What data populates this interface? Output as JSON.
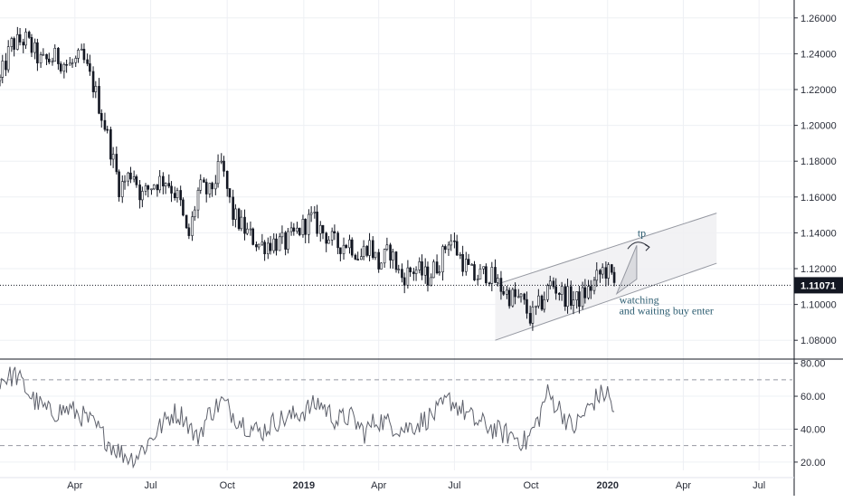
{
  "chart_data": [
    {
      "type": "candlestick",
      "x_range": [
        "2018-01-01",
        "2020-08-10"
      ],
      "ylim": [
        1.07,
        1.27
      ],
      "yticks": [
        "1.26000",
        "1.24000",
        "1.22000",
        "1.20000",
        "1.18000",
        "1.16000",
        "1.14000",
        "1.12000",
        "1.10000",
        "1.08000"
      ],
      "ytick_values": [
        1.26,
        1.24,
        1.22,
        1.2,
        1.18,
        1.16,
        1.14,
        1.12,
        1.1,
        1.08
      ],
      "xticks": [
        {
          "label": "Apr",
          "date": "2018-04-01",
          "bold": false
        },
        {
          "label": "Jul",
          "date": "2018-07-01",
          "bold": false
        },
        {
          "label": "Oct",
          "date": "2018-10-01",
          "bold": false
        },
        {
          "label": "2019",
          "date": "2019-01-01",
          "bold": true
        },
        {
          "label": "Apr",
          "date": "2019-04-01",
          "bold": false
        },
        {
          "label": "Jul",
          "date": "2019-07-01",
          "bold": false
        },
        {
          "label": "Oct",
          "date": "2019-10-01",
          "bold": false
        },
        {
          "label": "2020",
          "date": "2020-01-01",
          "bold": true
        },
        {
          "label": "Apr",
          "date": "2020-04-01",
          "bold": false
        },
        {
          "label": "Jul",
          "date": "2020-07-01",
          "bold": false
        }
      ],
      "price_path": [
        [
          "2018-01-01",
          1.225
        ],
        [
          "2018-01-15",
          1.245
        ],
        [
          "2018-02-01",
          1.248
        ],
        [
          "2018-02-20",
          1.235
        ],
        [
          "2018-03-10",
          1.238
        ],
        [
          "2018-03-25",
          1.233
        ],
        [
          "2018-04-10",
          1.238
        ],
        [
          "2018-04-25",
          1.22
        ],
        [
          "2018-05-10",
          1.195
        ],
        [
          "2018-05-25",
          1.165
        ],
        [
          "2018-06-10",
          1.175
        ],
        [
          "2018-06-20",
          1.16
        ],
        [
          "2018-07-05",
          1.168
        ],
        [
          "2018-07-20",
          1.17
        ],
        [
          "2018-08-05",
          1.158
        ],
        [
          "2018-08-15",
          1.135
        ],
        [
          "2018-08-28",
          1.165
        ],
        [
          "2018-09-10",
          1.162
        ],
        [
          "2018-09-24",
          1.178
        ],
        [
          "2018-10-08",
          1.15
        ],
        [
          "2018-10-25",
          1.14
        ],
        [
          "2018-11-10",
          1.133
        ],
        [
          "2018-11-25",
          1.135
        ],
        [
          "2018-12-10",
          1.134
        ],
        [
          "2018-12-28",
          1.142
        ],
        [
          "2019-01-10",
          1.148
        ],
        [
          "2019-01-25",
          1.14
        ],
        [
          "2019-02-10",
          1.133
        ],
        [
          "2019-02-25",
          1.135
        ],
        [
          "2019-03-10",
          1.126
        ],
        [
          "2019-03-20",
          1.135
        ],
        [
          "2019-04-01",
          1.122
        ],
        [
          "2019-04-15",
          1.13
        ],
        [
          "2019-04-28",
          1.115
        ],
        [
          "2019-05-15",
          1.12
        ],
        [
          "2019-05-30",
          1.115
        ],
        [
          "2019-06-15",
          1.125
        ],
        [
          "2019-06-25",
          1.138
        ],
        [
          "2019-07-10",
          1.125
        ],
        [
          "2019-07-25",
          1.115
        ],
        [
          "2019-08-10",
          1.118
        ],
        [
          "2019-08-25",
          1.11
        ],
        [
          "2019-09-05",
          1.105
        ],
        [
          "2019-09-20",
          1.102
        ],
        [
          "2019-10-01",
          1.092
        ],
        [
          "2019-10-15",
          1.102
        ],
        [
          "2019-10-25",
          1.112
        ],
        [
          "2019-11-10",
          1.105
        ],
        [
          "2019-11-25",
          1.102
        ],
        [
          "2019-12-10",
          1.108
        ],
        [
          "2019-12-28",
          1.12
        ],
        [
          "2020-01-05",
          1.116
        ],
        [
          "2020-01-10",
          1.1107
        ]
      ],
      "last_price": "1.11071",
      "channel": {
        "lower": [
          [
            "2019-08-19",
            1.08
          ],
          [
            "2020-05-11",
            1.123
          ]
        ],
        "upper": [
          [
            "2019-08-19",
            1.111
          ],
          [
            "2020-05-11",
            1.151
          ]
        ]
      },
      "projection": {
        "from": [
          "2020-01-12",
          1.106
        ],
        "to": [
          "2020-02-05",
          1.133
        ]
      },
      "annotations": [
        {
          "text": "tp",
          "date": "2020-02-06",
          "value": 1.138
        },
        {
          "text": "watching",
          "date": "2020-01-15",
          "value": 1.1005
        },
        {
          "text": "and waiting buy enter",
          "date": "2020-01-15",
          "value": 1.0945
        }
      ]
    },
    {
      "type": "line",
      "name": "",
      "ylim": [
        15,
        82
      ],
      "yticks": [
        "80.00",
        "60.00",
        "40.00",
        "20.00"
      ],
      "ytick_values": [
        80,
        60,
        40,
        20
      ],
      "levels": [
        70,
        30
      ],
      "series_path": [
        [
          "2018-01-01",
          70
        ],
        [
          "2018-01-20",
          73
        ],
        [
          "2018-02-10",
          58
        ],
        [
          "2018-03-01",
          50
        ],
        [
          "2018-03-25",
          52
        ],
        [
          "2018-04-10",
          48
        ],
        [
          "2018-04-25",
          42
        ],
        [
          "2018-05-10",
          33
        ],
        [
          "2018-05-25",
          26
        ],
        [
          "2018-06-10",
          22
        ],
        [
          "2018-06-25",
          30
        ],
        [
          "2018-07-10",
          40
        ],
        [
          "2018-07-28",
          50
        ],
        [
          "2018-08-10",
          48
        ],
        [
          "2018-08-25",
          34
        ],
        [
          "2018-09-10",
          50
        ],
        [
          "2018-09-25",
          57
        ],
        [
          "2018-10-10",
          48
        ],
        [
          "2018-10-25",
          42
        ],
        [
          "2018-11-10",
          38
        ],
        [
          "2018-11-28",
          45
        ],
        [
          "2018-12-15",
          47
        ],
        [
          "2019-01-05",
          52
        ],
        [
          "2019-01-20",
          56
        ],
        [
          "2019-02-10",
          45
        ],
        [
          "2019-02-25",
          48
        ],
        [
          "2019-03-15",
          38
        ],
        [
          "2019-03-30",
          46
        ],
        [
          "2019-04-15",
          43
        ],
        [
          "2019-05-01",
          40
        ],
        [
          "2019-05-20",
          44
        ],
        [
          "2019-06-10",
          50
        ],
        [
          "2019-06-25",
          58
        ],
        [
          "2019-07-10",
          52
        ],
        [
          "2019-07-25",
          45
        ],
        [
          "2019-08-10",
          42
        ],
        [
          "2019-08-25",
          38
        ],
        [
          "2019-09-10",
          36
        ],
        [
          "2019-09-25",
          32
        ],
        [
          "2019-10-10",
          46
        ],
        [
          "2019-10-20",
          62
        ],
        [
          "2019-11-05",
          52
        ],
        [
          "2019-11-20",
          40
        ],
        [
          "2019-12-05",
          50
        ],
        [
          "2019-12-20",
          60
        ],
        [
          "2020-01-01",
          62
        ],
        [
          "2020-01-05",
          56
        ],
        [
          "2020-01-10",
          49
        ]
      ]
    }
  ]
}
